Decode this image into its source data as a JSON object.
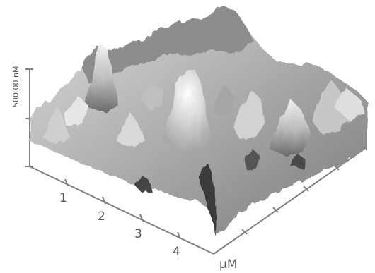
{
  "figure": {
    "z_axis_label": "500.00 nM",
    "x_axis_ticks": [
      "1",
      "2",
      "3",
      "4"
    ],
    "x_axis_unit": "μM",
    "axis_color": "#808080",
    "surface_colormap": "grayscale"
  }
}
